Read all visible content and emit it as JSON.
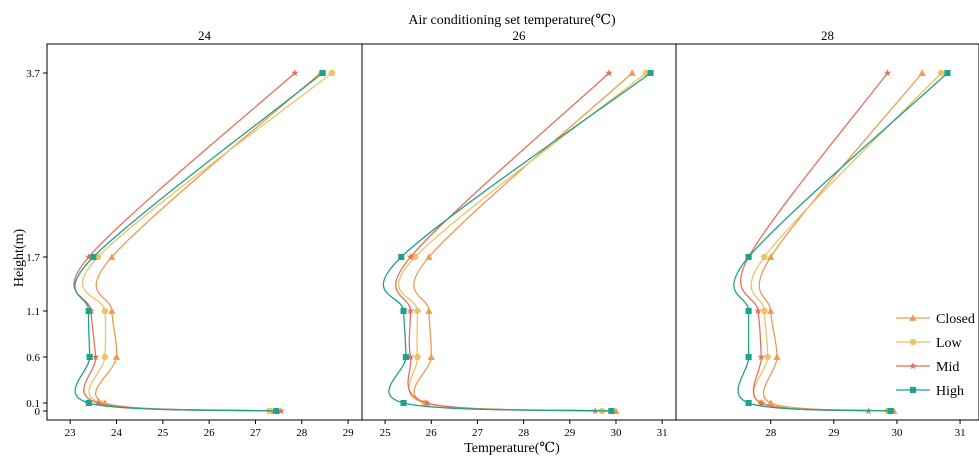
{
  "figure": {
    "super_title": "Air conditioning set temperature(℃)",
    "xlabel": "Temperature(℃)",
    "ylabel": "Height(m)"
  },
  "chart_data": {
    "type": "line",
    "heights": [
      0,
      0.1,
      0.6,
      1.1,
      1.7,
      3.7
    ],
    "y_tick_labels": [
      "0",
      "0.1",
      "0.6",
      "1.1",
      "1.7",
      "3.7"
    ],
    "legend_position": "right",
    "panels": [
      {
        "title": "24",
        "xlim": [
          22.5,
          29.3
        ],
        "xticks": [
          23,
          24,
          25,
          26,
          27,
          28,
          29
        ],
        "series": [
          {
            "name": "Closed",
            "color": "#EE9A52",
            "marker": "triangle",
            "x": [
              27.35,
              23.75,
              24.0,
              23.9,
              23.9,
              28.4
            ]
          },
          {
            "name": "Low",
            "color": "#EEC266",
            "marker": "circle",
            "x": [
              27.3,
              23.65,
              23.75,
              23.75,
              23.6,
              28.65
            ]
          },
          {
            "name": "Mid",
            "color": "#E5705A",
            "marker": "star",
            "x": [
              27.55,
              23.6,
              23.55,
              23.45,
              23.4,
              27.85
            ]
          },
          {
            "name": "High",
            "color": "#20A18A",
            "marker": "square",
            "x": [
              27.45,
              23.4,
              23.42,
              23.4,
              23.5,
              28.45
            ]
          }
        ]
      },
      {
        "title": "26",
        "xlim": [
          24.5,
          31.3
        ],
        "xticks": [
          25,
          26,
          27,
          28,
          29,
          30,
          31
        ],
        "series": [
          {
            "name": "Closed",
            "color": "#EE9A52",
            "marker": "triangle",
            "x": [
              30.0,
              25.9,
              26.0,
              25.95,
              25.95,
              30.35
            ]
          },
          {
            "name": "Low",
            "color": "#EEC266",
            "marker": "circle",
            "x": [
              29.7,
              25.85,
              25.7,
              25.7,
              25.65,
              30.65
            ]
          },
          {
            "name": "Mid",
            "color": "#E5705A",
            "marker": "star",
            "x": [
              29.55,
              25.9,
              25.55,
              25.55,
              25.55,
              29.85
            ]
          },
          {
            "name": "High",
            "color": "#20A18A",
            "marker": "square",
            "x": [
              29.9,
              25.4,
              25.45,
              25.4,
              25.35,
              30.75
            ]
          }
        ]
      },
      {
        "title": "28",
        "xlim": [
          26.5,
          31.3
        ],
        "xticks": [
          28,
          29,
          30,
          31
        ],
        "series": [
          {
            "name": "Closed",
            "color": "#EE9A52",
            "marker": "triangle",
            "x": [
              29.95,
              28.0,
              28.1,
              28.0,
              28.0,
              30.4
            ]
          },
          {
            "name": "Low",
            "color": "#EEC266",
            "marker": "circle",
            "x": [
              29.85,
              27.85,
              27.95,
              27.9,
              27.9,
              30.7
            ]
          },
          {
            "name": "Mid",
            "color": "#E5705A",
            "marker": "star",
            "x": [
              29.55,
              27.85,
              27.85,
              27.8,
              27.65,
              29.85
            ]
          },
          {
            "name": "High",
            "color": "#20A18A",
            "marker": "square",
            "x": [
              29.9,
              27.65,
              27.65,
              27.65,
              27.65,
              30.8
            ]
          }
        ]
      }
    ]
  }
}
